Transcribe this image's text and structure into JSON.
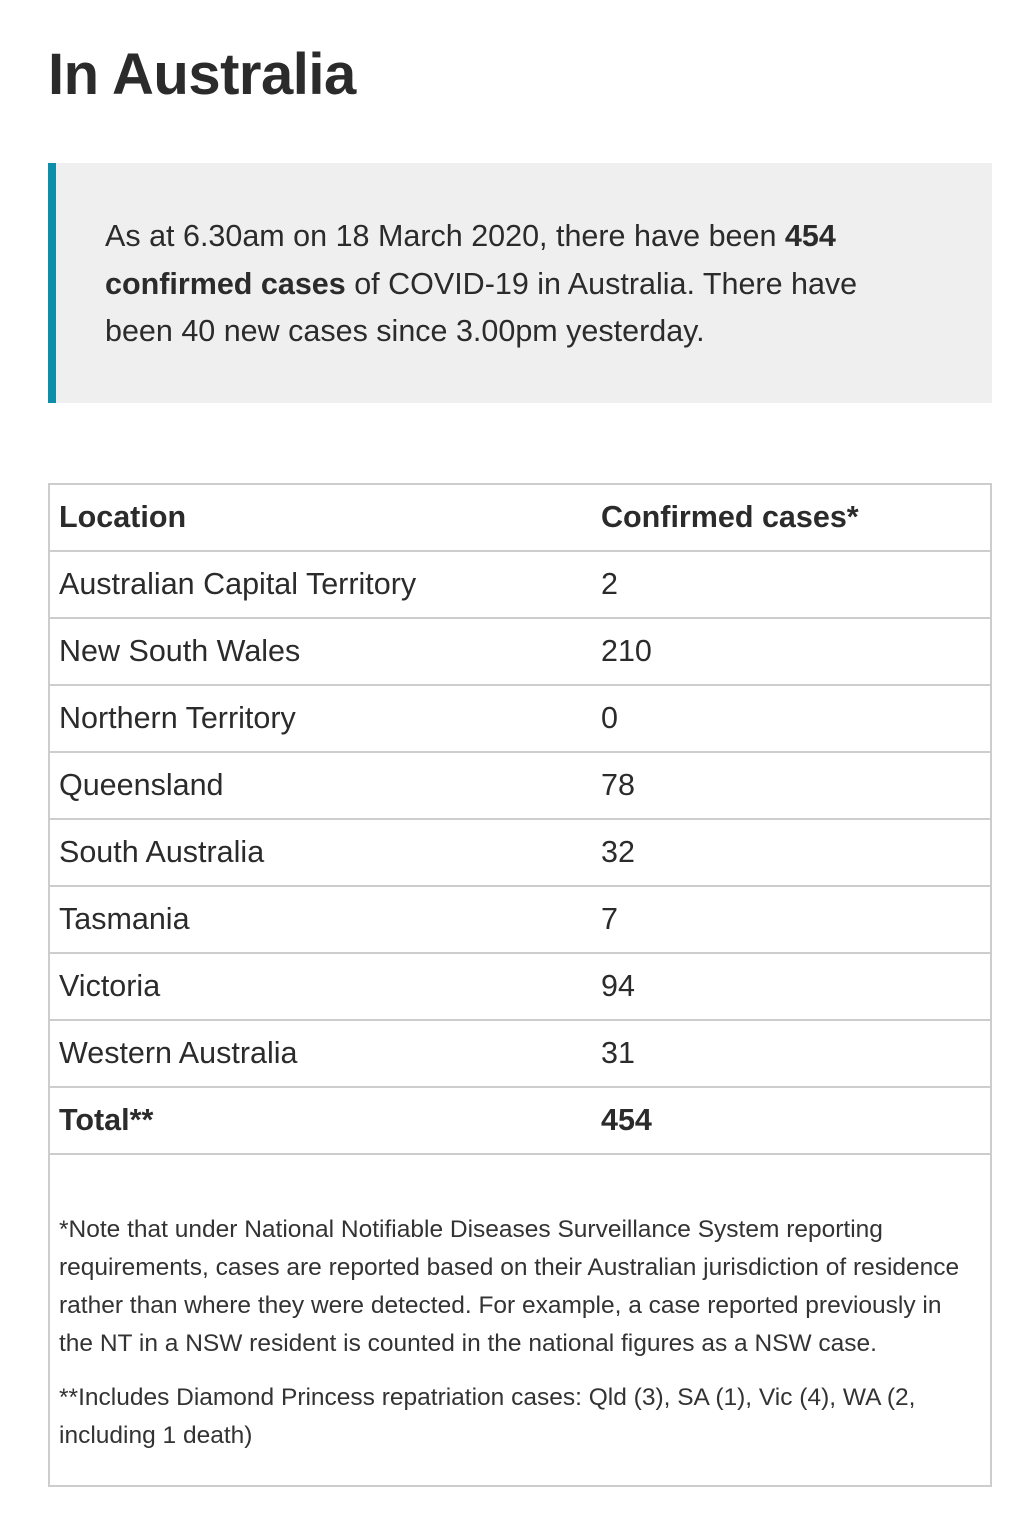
{
  "heading": "In Australia",
  "callout": {
    "text_before": "As at 6.30am on 18 March 2020, there have been ",
    "text_bold": "454 confirmed cases",
    "text_after": " of COVID-19 in Australia. There have been 40 new cases since 3.00pm yesterday."
  },
  "table": {
    "headers": [
      "Location",
      "Confirmed cases*"
    ],
    "rows": [
      {
        "location": "Australian Capital Territory",
        "cases": "2"
      },
      {
        "location": "New South Wales",
        "cases": "210"
      },
      {
        "location": "Northern Territory",
        "cases": "0"
      },
      {
        "location": "Queensland",
        "cases": "78"
      },
      {
        "location": "South Australia",
        "cases": "32"
      },
      {
        "location": "Tasmania",
        "cases": "7"
      },
      {
        "location": "Victoria",
        "cases": "94"
      },
      {
        "location": "Western Australia",
        "cases": "31"
      }
    ],
    "total": {
      "location": "Total**",
      "cases": "454"
    }
  },
  "notes": {
    "note1": "*Note that under National Notifiable Diseases Surveillance System reporting requirements, cases are reported based on their Australian jurisdiction of residence rather than where they were detected. For example, a case reported previously in the NT in a NSW resident is counted in the national figures as a NSW case.",
    "note2": "**Includes Diamond Princess repatriation cases: Qld (3), SA (1), Vic (4), WA (2, including 1 death)"
  },
  "colors": {
    "callout_accent": "#0e8ea8",
    "callout_background": "#efeff0",
    "table_border": "#cdcdcd"
  }
}
